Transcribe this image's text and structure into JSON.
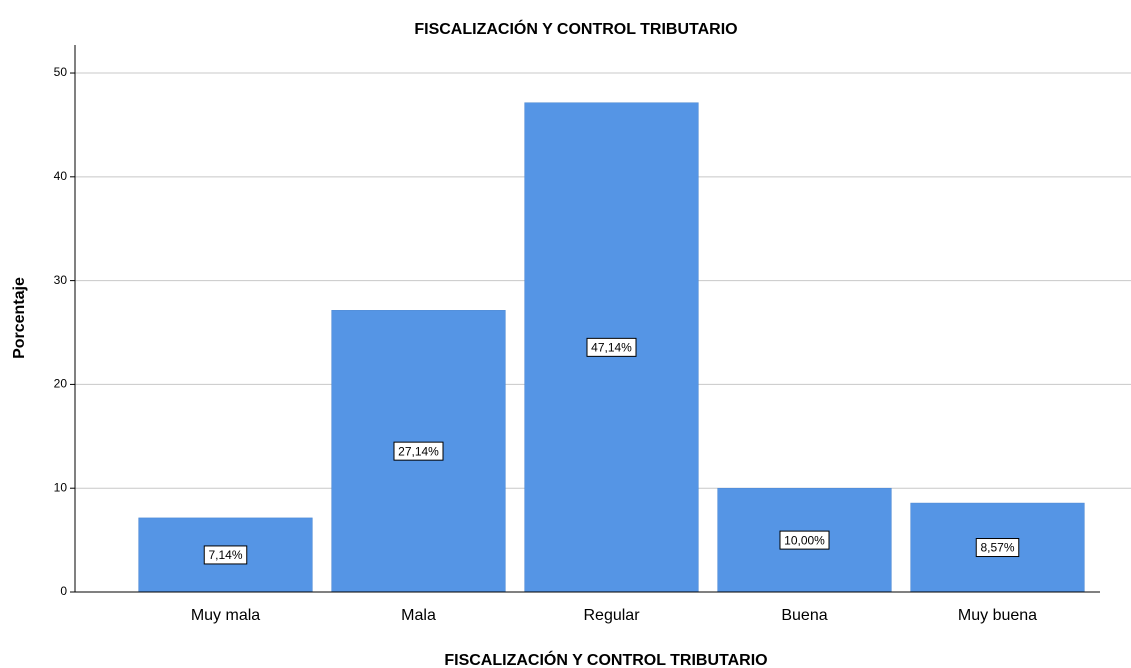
{
  "chart_data": {
    "type": "bar",
    "title": "FISCALIZACIÓN Y CONTROL TRIBUTARIO",
    "x_label": "FISCALIZACIÓN Y CONTROL TRIBUTARIO",
    "y_label": "Porcentaje",
    "categories": [
      "Muy mala",
      "Mala",
      "Regular",
      "Buena",
      "Muy buena"
    ],
    "values": [
      7.14,
      27.14,
      47.14,
      10.0,
      8.57
    ],
    "value_labels": [
      "7,14%",
      "27,14%",
      "47,14%",
      "10,00%",
      "8,57%"
    ],
    "color": "#5595e5",
    "ylim": [
      0,
      52.7
    ],
    "yticks": [
      0,
      10,
      20,
      30,
      40,
      50
    ],
    "grid": true
  }
}
